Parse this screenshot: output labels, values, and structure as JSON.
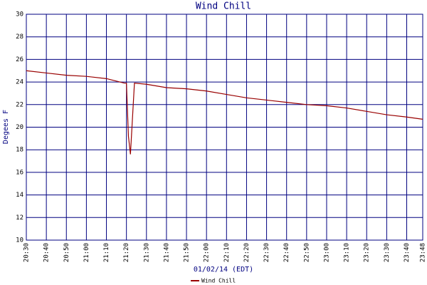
{
  "chart_data": {
    "type": "line",
    "title": "Wind Chill",
    "y_label": "Degees F",
    "x_label": "01/02/14 (EDT)",
    "x": [
      "20:30",
      "20:40",
      "20:50",
      "21:00",
      "21:10",
      "21:19",
      "21:20",
      "21:21",
      "21:22",
      "21:24",
      "21:30",
      "21:40",
      "21:50",
      "22:00",
      "22:10",
      "22:20",
      "22:30",
      "22:40",
      "22:50",
      "23:00",
      "23:10",
      "23:20",
      "23:30",
      "23:40",
      "23:48"
    ],
    "series": [
      {
        "name": "Wind Chill",
        "color": "#990000",
        "values": [
          25.0,
          24.8,
          24.6,
          24.5,
          24.3,
          23.9,
          23.9,
          19.2,
          17.6,
          23.9,
          23.8,
          23.5,
          23.4,
          23.2,
          22.9,
          22.6,
          22.4,
          22.2,
          22.0,
          21.9,
          21.7,
          21.4,
          21.1,
          20.9,
          20.7
        ]
      }
    ],
    "xlim": [
      "20:30",
      "23:48"
    ],
    "xticks": [
      "20:30",
      "20:40",
      "20:50",
      "21:00",
      "21:10",
      "21:20",
      "21:30",
      "21:40",
      "21:50",
      "22:00",
      "22:10",
      "22:20",
      "22:30",
      "22:40",
      "22:50",
      "23:00",
      "23:10",
      "23:20",
      "23:30",
      "23:40",
      "23:48"
    ],
    "ylim": [
      10,
      30
    ],
    "yticks": [
      10,
      12,
      14,
      16,
      18,
      20,
      22,
      24,
      26,
      28,
      30
    ],
    "grid": true,
    "grid_color": "#000080",
    "legend": "bottom"
  }
}
